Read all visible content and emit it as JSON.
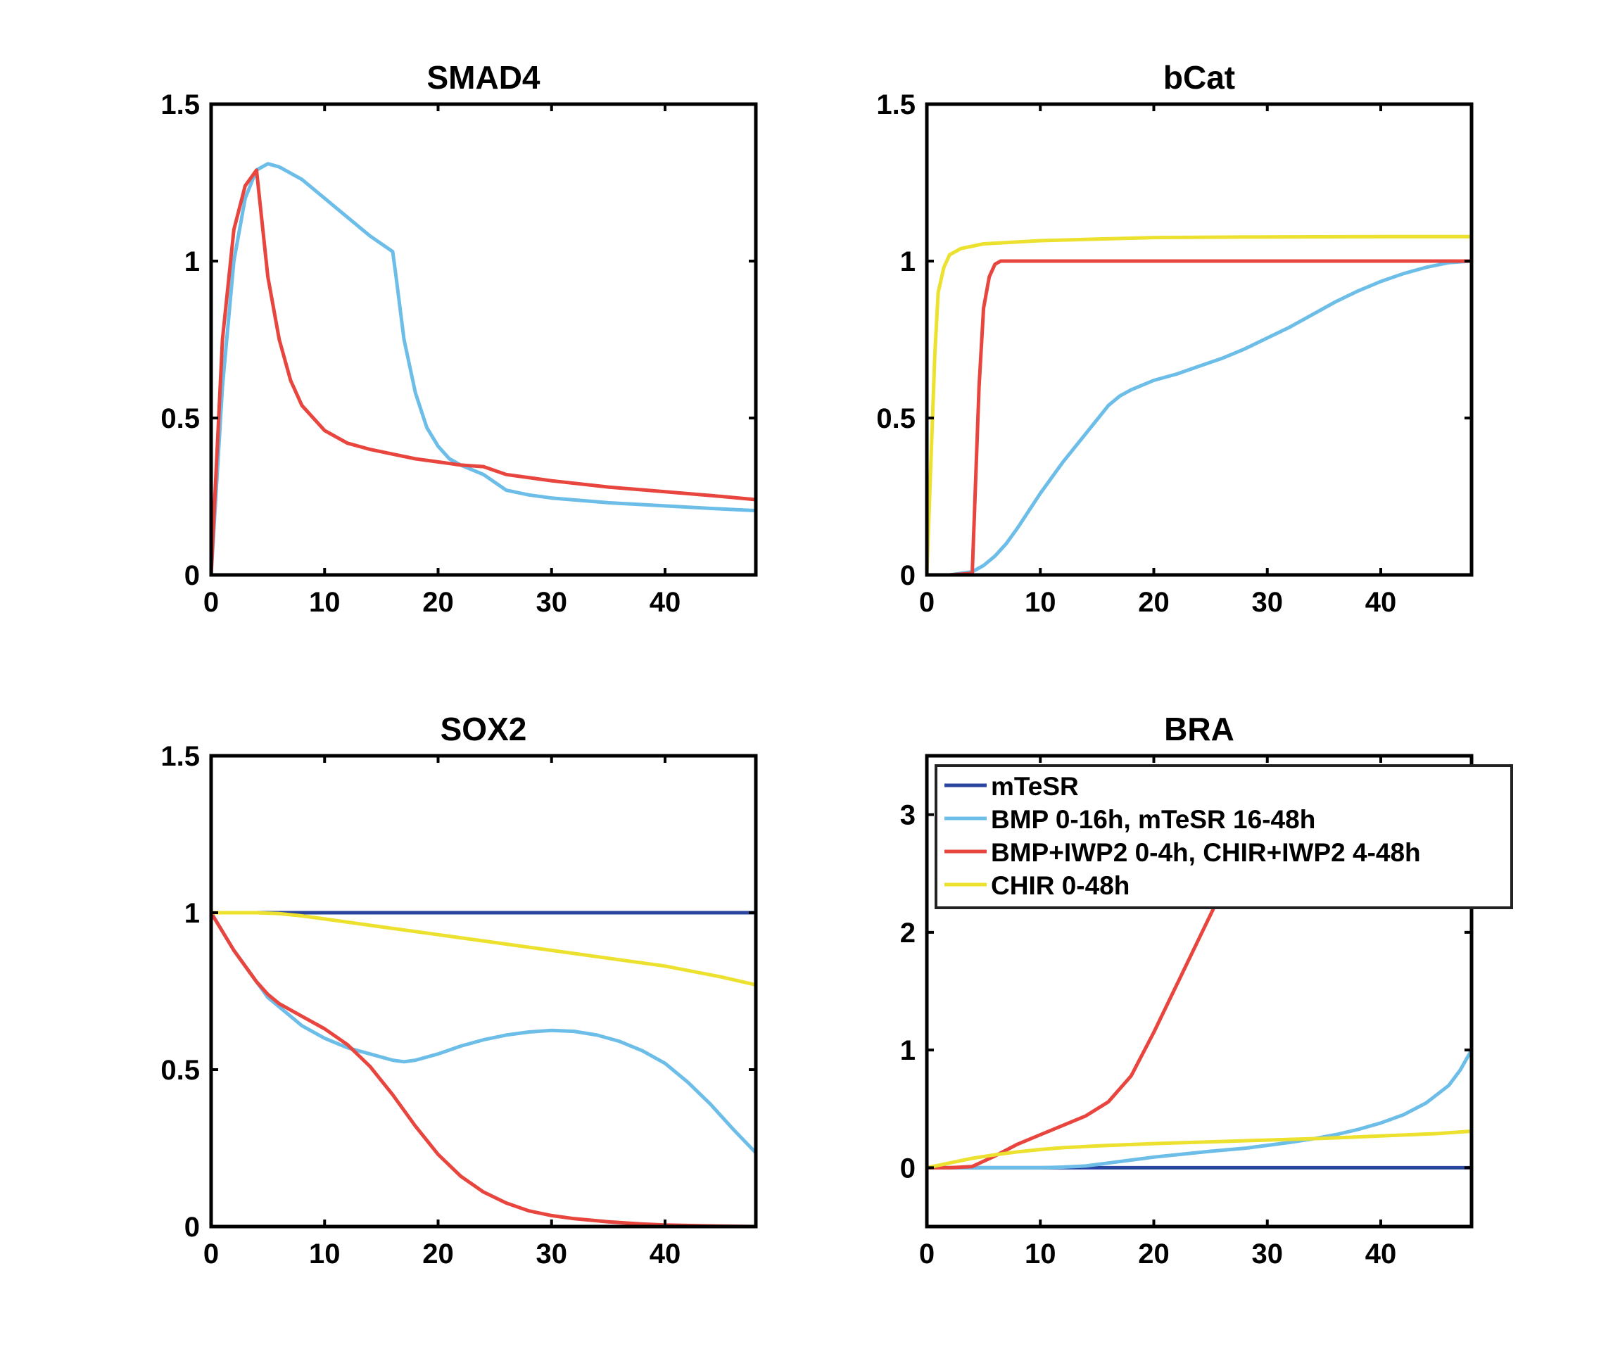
{
  "colors": {
    "mtesr": "#2a45a0",
    "bmp": "#6cbde8",
    "bmp_iwp2": "#e8453e",
    "chir": "#ece12e"
  },
  "legend": {
    "entries": [
      {
        "label": "mTeSR",
        "color_key": "mtesr"
      },
      {
        "label": "BMP 0-16h, mTeSR 16-48h",
        "color_key": "bmp"
      },
      {
        "label": "BMP+IWP2 0-4h, CHIR+IWP2 4-48h",
        "color_key": "bmp_iwp2"
      },
      {
        "label": "CHIR 0-48h",
        "color_key": "chir"
      }
    ],
    "placement": "inside top of BRA panel"
  },
  "chart_data": [
    {
      "type": "line",
      "title": "SMAD4",
      "xlim": [
        0,
        48
      ],
      "ylim": [
        0,
        1.5
      ],
      "xticks": [
        0,
        10,
        20,
        30,
        40
      ],
      "yticks": [
        0,
        0.5,
        1,
        1.5
      ],
      "ytick_labels": [
        "0",
        "0.5",
        "1",
        "1.5"
      ],
      "series": [
        {
          "name": "mTeSR",
          "color_key": "mtesr",
          "x": [
            0,
            48
          ],
          "y": [
            0,
            0
          ]
        },
        {
          "name": "BMP 0-16h, mTeSR 16-48h",
          "color_key": "bmp",
          "x": [
            0,
            1,
            2,
            3,
            4,
            5,
            6,
            8,
            10,
            12,
            14,
            16,
            16.3,
            17,
            18,
            19,
            20,
            21,
            22,
            24,
            26,
            28,
            30,
            35,
            40,
            45,
            48
          ],
          "y": [
            0,
            0.6,
            1.0,
            1.2,
            1.29,
            1.31,
            1.3,
            1.26,
            1.2,
            1.14,
            1.08,
            1.03,
            0.95,
            0.75,
            0.58,
            0.47,
            0.41,
            0.37,
            0.35,
            0.32,
            0.27,
            0.255,
            0.245,
            0.23,
            0.22,
            0.21,
            0.205
          ]
        },
        {
          "name": "BMP+IWP2 0-4h, CHIR+IWP2 4-48h",
          "color_key": "bmp_iwp2",
          "x": [
            0,
            1,
            2,
            3,
            4,
            5,
            6,
            7,
            8,
            10,
            12,
            14,
            16,
            18,
            20,
            22,
            24,
            26,
            30,
            35,
            40,
            45,
            48
          ],
          "y": [
            0,
            0.75,
            1.1,
            1.24,
            1.29,
            0.95,
            0.75,
            0.62,
            0.54,
            0.46,
            0.42,
            0.4,
            0.385,
            0.37,
            0.36,
            0.35,
            0.345,
            0.32,
            0.3,
            0.28,
            0.265,
            0.25,
            0.24
          ]
        },
        {
          "name": "CHIR 0-48h",
          "color_key": "chir",
          "x": [
            0,
            48
          ],
          "y": [
            0,
            0
          ]
        }
      ]
    },
    {
      "type": "line",
      "title": "bCat",
      "xlim": [
        0,
        48
      ],
      "ylim": [
        0,
        1.5
      ],
      "xticks": [
        0,
        10,
        20,
        30,
        40
      ],
      "yticks": [
        0,
        0.5,
        1,
        1.5
      ],
      "ytick_labels": [
        "0",
        "0.5",
        "1",
        "1.5"
      ],
      "series": [
        {
          "name": "mTeSR",
          "color_key": "mtesr",
          "x": [
            0,
            48
          ],
          "y": [
            0,
            0
          ]
        },
        {
          "name": "BMP 0-16h, mTeSR 16-48h",
          "color_key": "bmp",
          "x": [
            0,
            2,
            4,
            5,
            6,
            7,
            8,
            10,
            12,
            14,
            16,
            17,
            18,
            20,
            22,
            24,
            26,
            28,
            30,
            32,
            34,
            36,
            38,
            40,
            42,
            44,
            46,
            48
          ],
          "y": [
            0,
            0,
            0.01,
            0.03,
            0.06,
            0.1,
            0.15,
            0.26,
            0.36,
            0.45,
            0.54,
            0.57,
            0.59,
            0.62,
            0.64,
            0.665,
            0.69,
            0.72,
            0.755,
            0.79,
            0.83,
            0.87,
            0.905,
            0.935,
            0.96,
            0.98,
            0.995,
            1.0
          ]
        },
        {
          "name": "BMP+IWP2 0-4h, CHIR+IWP2 4-48h",
          "color_key": "bmp_iwp2",
          "x": [
            0,
            2,
            4,
            4.2,
            4.6,
            5,
            5.5,
            6,
            6.5,
            7,
            10,
            20,
            30,
            40,
            48
          ],
          "y": [
            0,
            0,
            0.005,
            0.2,
            0.6,
            0.85,
            0.95,
            0.99,
            1.0,
            1.0,
            1.0,
            1.0,
            1.0,
            1.0,
            1.0
          ]
        },
        {
          "name": "CHIR 0-48h",
          "color_key": "chir",
          "x": [
            0,
            0.3,
            0.7,
            1,
            1.5,
            2,
            3,
            5,
            10,
            15,
            20,
            25,
            30,
            40,
            48
          ],
          "y": [
            0,
            0.3,
            0.7,
            0.9,
            0.98,
            1.02,
            1.04,
            1.055,
            1.065,
            1.07,
            1.075,
            1.076,
            1.077,
            1.078,
            1.078
          ]
        }
      ]
    },
    {
      "type": "line",
      "title": "SOX2",
      "xlim": [
        0,
        48
      ],
      "ylim": [
        0,
        1.5
      ],
      "xticks": [
        0,
        10,
        20,
        30,
        40
      ],
      "yticks": [
        0,
        0.5,
        1,
        1.5
      ],
      "ytick_labels": [
        "0",
        "0.5",
        "1",
        "1.5"
      ],
      "series": [
        {
          "name": "mTeSR",
          "color_key": "mtesr",
          "x": [
            0,
            48
          ],
          "y": [
            1,
            1
          ]
        },
        {
          "name": "BMP 0-16h, mTeSR 16-48h",
          "color_key": "bmp",
          "x": [
            0,
            2,
            4,
            5,
            6,
            8,
            10,
            12,
            14,
            16,
            17,
            18,
            20,
            22,
            24,
            26,
            28,
            30,
            32,
            34,
            36,
            38,
            40,
            42,
            44,
            46,
            48
          ],
          "y": [
            1,
            0.88,
            0.78,
            0.73,
            0.7,
            0.64,
            0.6,
            0.57,
            0.55,
            0.53,
            0.525,
            0.53,
            0.55,
            0.575,
            0.595,
            0.61,
            0.62,
            0.625,
            0.622,
            0.61,
            0.59,
            0.56,
            0.52,
            0.46,
            0.39,
            0.31,
            0.235
          ]
        },
        {
          "name": "BMP+IWP2 0-4h, CHIR+IWP2 4-48h",
          "color_key": "bmp_iwp2",
          "x": [
            0,
            2,
            4,
            5,
            6,
            8,
            10,
            12,
            14,
            16,
            18,
            20,
            22,
            24,
            26,
            28,
            30,
            32,
            35,
            38,
            40,
            44,
            48
          ],
          "y": [
            1,
            0.88,
            0.78,
            0.74,
            0.71,
            0.67,
            0.63,
            0.58,
            0.51,
            0.42,
            0.32,
            0.23,
            0.16,
            0.11,
            0.075,
            0.05,
            0.035,
            0.025,
            0.015,
            0.008,
            0.005,
            0.002,
            0.0
          ]
        },
        {
          "name": "CHIR 0-48h",
          "color_key": "chir",
          "x": [
            0,
            2,
            4,
            6,
            8,
            10,
            15,
            20,
            25,
            30,
            35,
            40,
            45,
            48
          ],
          "y": [
            1,
            1.0,
            1.0,
            0.997,
            0.99,
            0.98,
            0.955,
            0.93,
            0.905,
            0.88,
            0.855,
            0.83,
            0.795,
            0.77
          ]
        }
      ]
    },
    {
      "type": "line",
      "title": "BRA",
      "xlim": [
        0,
        48
      ],
      "ylim": [
        -0.5,
        3.5
      ],
      "xticks": [
        0,
        10,
        20,
        30,
        40
      ],
      "yticks": [
        0,
        1,
        2,
        3
      ],
      "ytick_labels": [
        "0",
        "1",
        "2",
        "3"
      ],
      "series": [
        {
          "name": "mTeSR",
          "color_key": "mtesr",
          "x": [
            0,
            48
          ],
          "y": [
            0,
            0
          ]
        },
        {
          "name": "BMP 0-16h, mTeSR 16-48h",
          "color_key": "bmp",
          "x": [
            0,
            10,
            12,
            14,
            16,
            18,
            20,
            22,
            25,
            28,
            30,
            32,
            34,
            36,
            38,
            40,
            42,
            44,
            46,
            47,
            48
          ],
          "y": [
            0,
            0,
            0.005,
            0.015,
            0.04,
            0.065,
            0.09,
            0.11,
            0.14,
            0.165,
            0.19,
            0.215,
            0.245,
            0.28,
            0.325,
            0.38,
            0.45,
            0.55,
            0.7,
            0.83,
            1.0
          ]
        },
        {
          "name": "BMP+IWP2 0-4h, CHIR+IWP2 4-48h",
          "color_key": "bmp_iwp2",
          "x": [
            0,
            2,
            4,
            6,
            8,
            10,
            12,
            14,
            16,
            18,
            20,
            22,
            24,
            26,
            27.5
          ],
          "y": [
            0,
            0,
            0.01,
            0.1,
            0.2,
            0.28,
            0.36,
            0.44,
            0.56,
            0.78,
            1.15,
            1.55,
            1.95,
            2.35,
            2.75
          ]
        },
        {
          "name": "CHIR 0-48h",
          "color_key": "chir",
          "x": [
            0,
            2,
            4,
            6,
            8,
            10,
            12,
            15,
            20,
            25,
            30,
            35,
            40,
            45,
            48
          ],
          "y": [
            0,
            0.04,
            0.08,
            0.11,
            0.135,
            0.155,
            0.17,
            0.185,
            0.205,
            0.22,
            0.235,
            0.25,
            0.27,
            0.29,
            0.31
          ]
        }
      ]
    }
  ]
}
